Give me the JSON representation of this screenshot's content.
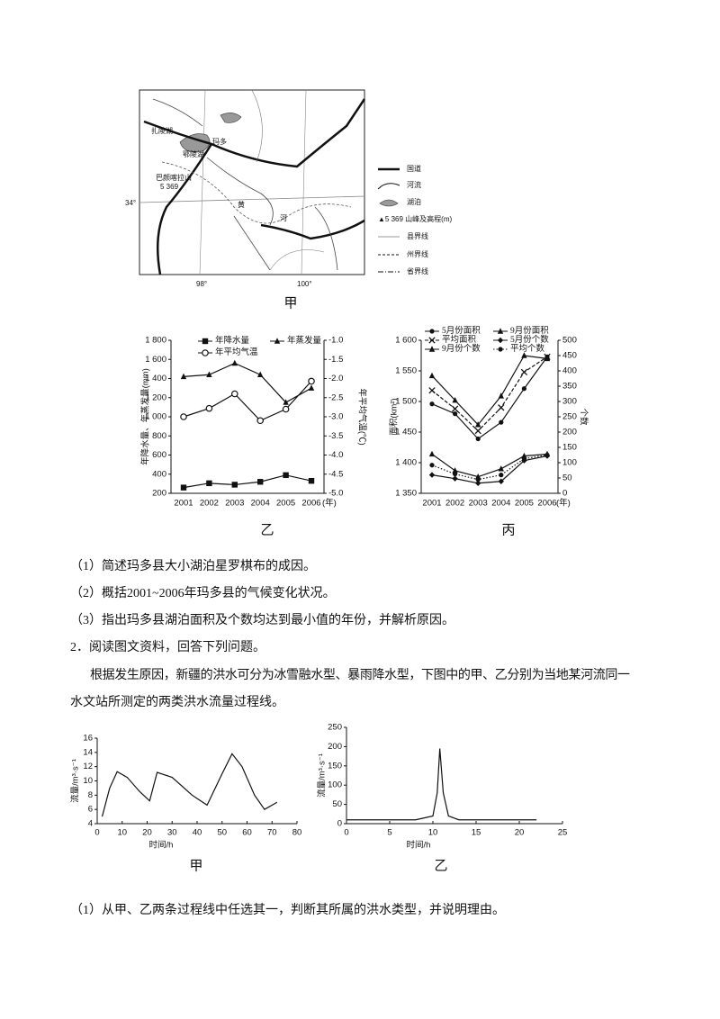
{
  "map": {
    "caption": "甲",
    "labels": [
      "扎陵湖",
      "鄂陵湖",
      "玛多",
      "巴颜喀拉山",
      "5 369",
      "黄",
      "河",
      "34°",
      "98°",
      "100°"
    ],
    "legend": [
      "国道",
      "河流",
      "湖泊",
      "▲5 369 山峰及高程(m)",
      "县界线",
      "州界线",
      "省界线"
    ]
  },
  "questions_1": [
    "（1）简述玛多县大小湖泊星罗棋布的成因。",
    "（2）概括2001~2006年玛多县的气候变化状况。",
    "（3）指出玛多县湖泊面积及个数均达到最小值的年份，并解析原因。"
  ],
  "question_2": {
    "heading": "2．阅读图文资料，回答下列问题。",
    "paragraph": [
      "根据发生原因，新疆的洪水可分为冰雪融水型、暴雨降水型，下图中的甲、乙分别为当地某河流同一",
      "水文站所测定的两类洪水流量过程线。"
    ],
    "question": "（1）从甲、乙两条过程线中任选其一，判断其所属的洪水类型，并说明理由。"
  },
  "chart_data": [
    {
      "type": "line",
      "title": "乙",
      "categories": [
        "2001",
        "2002",
        "2003",
        "2004",
        "2005",
        "2006"
      ],
      "x_label": "(年)",
      "y_label": "年降水量、年蒸发量(mm)",
      "y2_label": "年平均气温(℃)",
      "ylim": [
        200,
        1800
      ],
      "yticks": [
        200,
        400,
        600,
        800,
        {
          "value": 1000,
          "label": "1 000"
        },
        {
          "value": 1200,
          "label": "1 200"
        },
        {
          "value": 1400,
          "label": "1 400"
        },
        {
          "value": 1600,
          "label": "1 600"
        },
        {
          "value": 1800,
          "label": "1 800"
        }
      ],
      "y2lim": [
        -5.0,
        -1.0
      ],
      "y2ticks": [
        {
          "value": -5,
          "label": "-5.0"
        },
        -4.5,
        {
          "value": -4,
          "label": "-4.0"
        },
        -3.5,
        {
          "value": -3,
          "label": "-3.0"
        },
        -2.5,
        {
          "value": -2,
          "label": "-2.0"
        },
        -1.5,
        {
          "value": -1,
          "label": "-1.0"
        }
      ],
      "series": [
        {
          "name": "年降水量",
          "color": "#111111",
          "marker": "square",
          "line_style": "solid",
          "values": [
            260,
            305,
            290,
            320,
            390,
            330
          ]
        },
        {
          "name": "年蒸发量",
          "color": "#111111",
          "marker": "triangle",
          "line_style": "solid",
          "values": [
            1420,
            1440,
            1560,
            1440,
            1150,
            1300
          ]
        },
        {
          "name": "年平均气温",
          "color": "#111111",
          "marker": "circle-open",
          "line_style": "solid",
          "axis": "y2",
          "values": [
            -3.0,
            -2.78,
            -2.4,
            -3.1,
            -2.8,
            -2.07
          ]
        }
      ]
    },
    {
      "type": "line",
      "title": "丙",
      "categories": [
        "2001",
        "2002",
        "2003",
        "2004",
        "2005",
        "2006"
      ],
      "x_label": "(年)",
      "y_label": "面积(km²)",
      "y2_label": "个数",
      "ylim": [
        1350,
        1600
      ],
      "yticks": [
        {
          "value": 1350,
          "label": "1 350"
        },
        {
          "value": 1400,
          "label": "1 400"
        },
        {
          "value": 1450,
          "label": "1 450"
        },
        {
          "value": 1500,
          "label": "1 500"
        },
        {
          "value": 1550,
          "label": "1 550"
        },
        {
          "value": 1600,
          "label": "1 600"
        }
      ],
      "y2lim": [
        0,
        500
      ],
      "y2ticks": [
        0,
        50,
        100,
        150,
        200,
        250,
        300,
        350,
        400,
        450,
        500
      ],
      "series": [
        {
          "name": "5月份面积",
          "color": "#111111",
          "marker": "circle",
          "line_style": "solid",
          "values": [
            1496,
            1480,
            1439,
            1466,
            1521,
            1573
          ]
        },
        {
          "name": "9月份面积",
          "color": "#111111",
          "marker": "triangle",
          "line_style": "solid",
          "values": [
            1542,
            1502,
            1462,
            1509,
            1575,
            1570
          ]
        },
        {
          "name": "平均面积",
          "color": "#111111",
          "marker": "x",
          "line_style": "dashed",
          "values": [
            1518,
            1488,
            1452,
            1490,
            1548,
            1573
          ]
        },
        {
          "name": "5月份个数",
          "color": "#111111",
          "marker": "diamond",
          "line_style": "solid",
          "axis": "y2",
          "values": [
            60,
            48,
            33,
            39,
            107,
            122
          ]
        },
        {
          "name": "9月份个数",
          "color": "#111111",
          "marker": "triangle",
          "line_style": "solid",
          "axis": "y2",
          "values": [
            128,
            74,
            54,
            80,
            122,
            128
          ]
        },
        {
          "name": "平均个数",
          "color": "#111111",
          "marker": "circle",
          "line_style": "dotted",
          "axis": "y2",
          "values": [
            92,
            63,
            45,
            60,
            113,
            125
          ]
        }
      ]
    },
    {
      "type": "line",
      "title": "甲",
      "x_label": "时间/h",
      "y_label": "流量/m³·s⁻¹",
      "xlim": [
        0,
        80
      ],
      "xticks": [
        0,
        10,
        20,
        30,
        40,
        50,
        60,
        70,
        80
      ],
      "ylim": [
        4,
        16
      ],
      "yticks": [
        4,
        6,
        8,
        10,
        12,
        14,
        16
      ],
      "x": [
        2,
        5,
        8,
        12,
        17,
        21,
        24,
        30,
        38,
        44,
        50,
        54,
        58,
        63,
        67,
        72
      ],
      "series": [
        {
          "color": "#111111",
          "line_style": "solid",
          "values": [
            5,
            9,
            11.3,
            10.5,
            8.5,
            7.2,
            11.2,
            10.5,
            8,
            6.6,
            11,
            13.8,
            12,
            8,
            6,
            7
          ]
        }
      ]
    },
    {
      "type": "line",
      "title": "乙",
      "x_label": "时间/h",
      "y_label": "流量/m³·s⁻¹",
      "xlim": [
        0,
        25
      ],
      "xticks": [
        0,
        5,
        10,
        15,
        20,
        25
      ],
      "ylim": [
        0,
        250
      ],
      "yticks": [
        0,
        50,
        100,
        150,
        200,
        250
      ],
      "x": [
        0,
        5,
        8,
        10,
        10.5,
        10.8,
        11.2,
        11.8,
        13,
        15,
        22
      ],
      "series": [
        {
          "color": "#111111",
          "line_style": "solid",
          "values": [
            10,
            10,
            10,
            20,
            80,
            195,
            80,
            20,
            10,
            10,
            10
          ]
        }
      ]
    }
  ]
}
